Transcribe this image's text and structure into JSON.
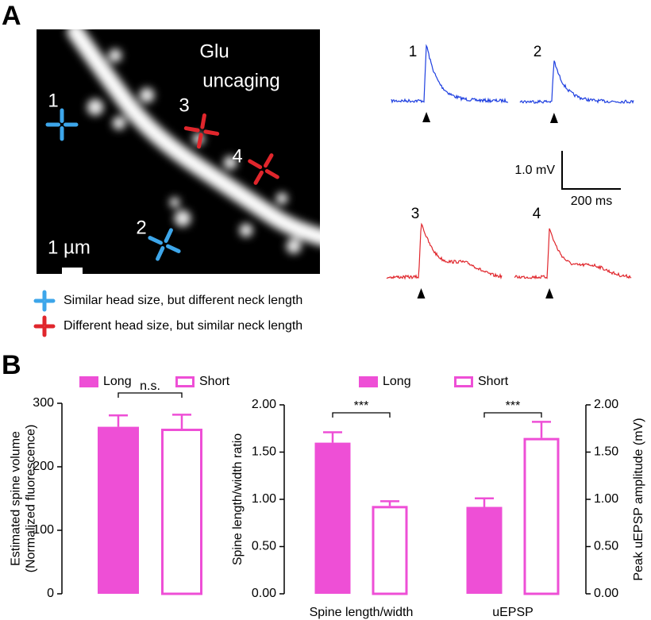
{
  "panel_a": {
    "label": "A",
    "image_title_lines": [
      "Glu",
      "uncaging"
    ],
    "markers": [
      "1",
      "2",
      "3",
      "4"
    ],
    "scale_label": "1 µm",
    "legend": [
      "Similar head size, but different neck length",
      "Different head size, but similar neck length"
    ],
    "trace_labels": [
      "1",
      "2",
      "3",
      "4"
    ],
    "scale_mv": "1.0 mV",
    "scale_ms": "200 ms"
  },
  "panel_b": {
    "label": "B"
  },
  "chart_data": [
    {
      "type": "bar",
      "ylabel": [
        "Estimated spine volume",
        "(Normalized fluorescence)"
      ],
      "categories": [
        null
      ],
      "series": [
        {
          "name": "Long",
          "color": "#ee4fd6",
          "filled": true,
          "values": [
            263
          ],
          "errors": [
            18
          ]
        },
        {
          "name": "Short",
          "color": "#ee4fd6",
          "filled": false,
          "values": [
            260
          ],
          "errors": [
            22
          ]
        }
      ],
      "ylim": [
        0,
        300
      ],
      "yticks": [
        0,
        100,
        200,
        300
      ],
      "annotations": [
        "n.s."
      ]
    },
    {
      "type": "bar",
      "ylabel": [
        "Spine length/width ratio"
      ],
      "y2label": [
        "Peak uEPSP amplitude (mV)"
      ],
      "categories": [
        "Spine length/width",
        "uEPSP"
      ],
      "series": [
        {
          "name": "Long",
          "color": "#ee4fd6",
          "filled": true,
          "values": [
            1.6,
            0.92
          ],
          "errors": [
            0.11,
            0.09
          ]
        },
        {
          "name": "Short",
          "color": "#ee4fd6",
          "filled": false,
          "values": [
            0.93,
            1.65
          ],
          "errors": [
            0.05,
            0.17
          ]
        }
      ],
      "ylim": [
        0,
        2
      ],
      "yticks": [
        {
          "value": 0,
          "label": "0.00"
        },
        {
          "value": 0.5,
          "label": "0.50"
        },
        {
          "value": 1,
          "label": "1.00"
        },
        {
          "value": 1.5,
          "label": "1.50"
        },
        {
          "value": 2,
          "label": "2.00"
        }
      ],
      "y2lim": [
        0,
        2
      ],
      "y2ticks": [
        {
          "value": 0,
          "label": "0.00"
        },
        {
          "value": 0.5,
          "label": "0.50"
        },
        {
          "value": 1,
          "label": "1.00"
        },
        {
          "value": 1.5,
          "label": "1.50"
        },
        {
          "value": 2,
          "label": "2.00"
        }
      ],
      "annotations": [
        "***",
        "***"
      ]
    }
  ]
}
